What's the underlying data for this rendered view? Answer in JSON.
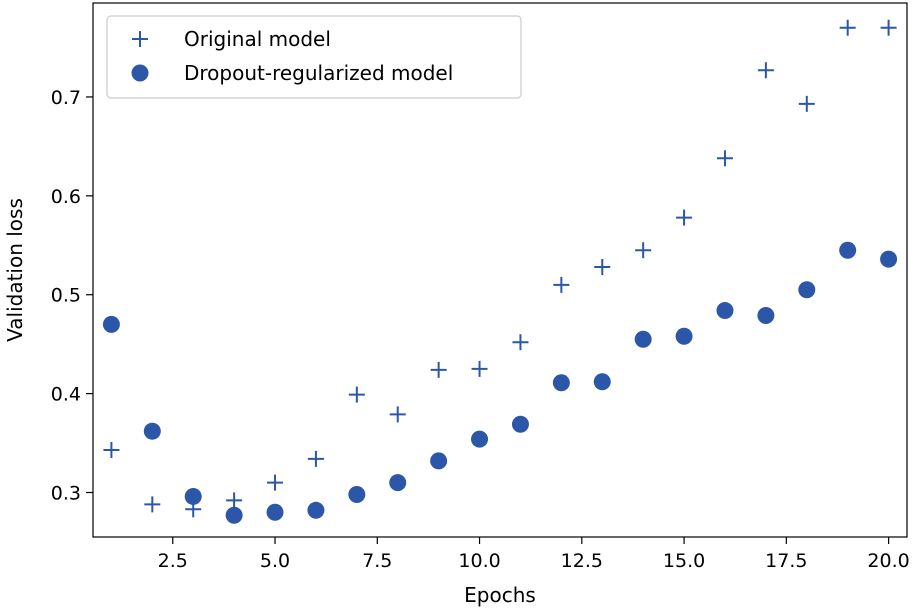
{
  "chart_data": {
    "type": "scatter",
    "title": "",
    "xlabel": "Epochs",
    "ylabel": "Validation loss",
    "xlim": [
      0.55,
      20.45
    ],
    "ylim": [
      0.255,
      0.795
    ],
    "xticks": [
      2.5,
      5.0,
      7.5,
      10.0,
      12.5,
      15.0,
      17.5,
      20.0
    ],
    "xtick_labels": [
      "2.5",
      "5.0",
      "7.5",
      "10.0",
      "12.5",
      "15.0",
      "17.5",
      "20.0"
    ],
    "yticks": [
      0.3,
      0.4,
      0.5,
      0.6,
      0.7
    ],
    "ytick_labels": [
      "0.3",
      "0.4",
      "0.5",
      "0.6",
      "0.7"
    ],
    "grid": false,
    "legend_position": "top-left",
    "color": "#2c56a8",
    "series": [
      {
        "name": "Original model",
        "marker": "plus",
        "x": [
          1,
          2,
          3,
          4,
          5,
          6,
          7,
          8,
          9,
          10,
          11,
          12,
          13,
          14,
          15,
          16,
          17,
          18,
          19,
          20
        ],
        "values": [
          0.343,
          0.288,
          0.283,
          0.292,
          0.31,
          0.334,
          0.399,
          0.379,
          0.424,
          0.425,
          0.452,
          0.51,
          0.528,
          0.545,
          0.578,
          0.638,
          0.727,
          0.693,
          0.77,
          0.77
        ]
      },
      {
        "name": "Dropout-regularized model",
        "marker": "circle",
        "x": [
          1,
          2,
          3,
          4,
          5,
          6,
          7,
          8,
          9,
          10,
          11,
          12,
          13,
          14,
          15,
          16,
          17,
          18,
          19,
          20
        ],
        "values": [
          0.47,
          0.362,
          0.296,
          0.277,
          0.28,
          0.282,
          0.298,
          0.31,
          0.332,
          0.354,
          0.369,
          0.411,
          0.412,
          0.455,
          0.458,
          0.484,
          0.479,
          0.505,
          0.545,
          0.536
        ]
      }
    ]
  }
}
